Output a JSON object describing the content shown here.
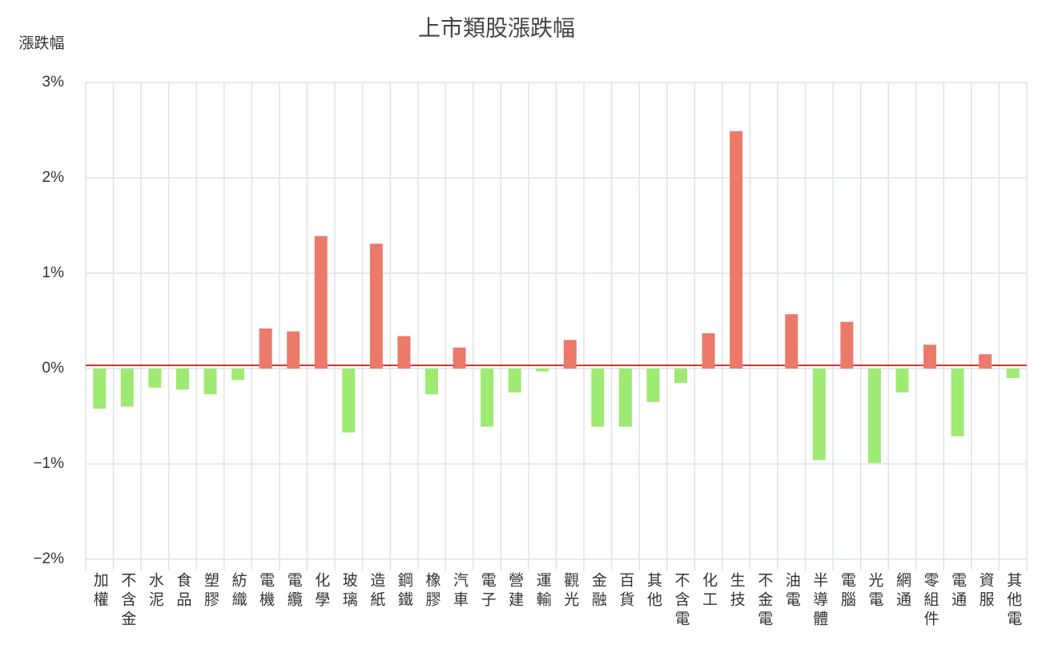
{
  "chart_data": {
    "type": "bar",
    "title": "上市類股漲跌幅",
    "y_label": "漲跌幅",
    "categories": [
      "加權",
      "不含金",
      "水泥",
      "食品",
      "塑膠",
      "紡織",
      "電機",
      "電纜",
      "化學",
      "玻璃",
      "造紙",
      "鋼鐵",
      "橡膠",
      "汽車",
      "電子",
      "營建",
      "運輸",
      "觀光",
      "金融",
      "百貨",
      "其他",
      "不含電",
      "化工",
      "生技",
      "不金電",
      "油電",
      "半導體",
      "電腦",
      "光電",
      "網通",
      "零組件",
      "電通",
      "資服",
      "其他電"
    ],
    "values": [
      -0.42,
      -0.4,
      -0.2,
      -0.22,
      -0.27,
      -0.12,
      0.42,
      0.39,
      1.39,
      -0.67,
      1.31,
      0.34,
      -0.27,
      0.22,
      -0.61,
      -0.25,
      -0.03,
      0.3,
      -0.61,
      -0.61,
      -0.35,
      -0.15,
      0.37,
      2.49,
      0,
      0.57,
      -0.96,
      0.49,
      -0.99,
      -0.25,
      0.25,
      -0.71,
      0.15,
      -0.1
    ],
    "positive_color": "#ec7a6b",
    "negative_color": "#9eea72",
    "ylim": [
      -2,
      3
    ],
    "yticks": [
      {
        "value": -2,
        "label": "−2%"
      },
      {
        "value": -1,
        "label": "−1%"
      },
      {
        "value": 0,
        "label": "0%"
      },
      {
        "value": 1,
        "label": "1%"
      },
      {
        "value": 2,
        "label": "2%"
      },
      {
        "value": 3,
        "label": "3%"
      }
    ],
    "grid": true
  }
}
